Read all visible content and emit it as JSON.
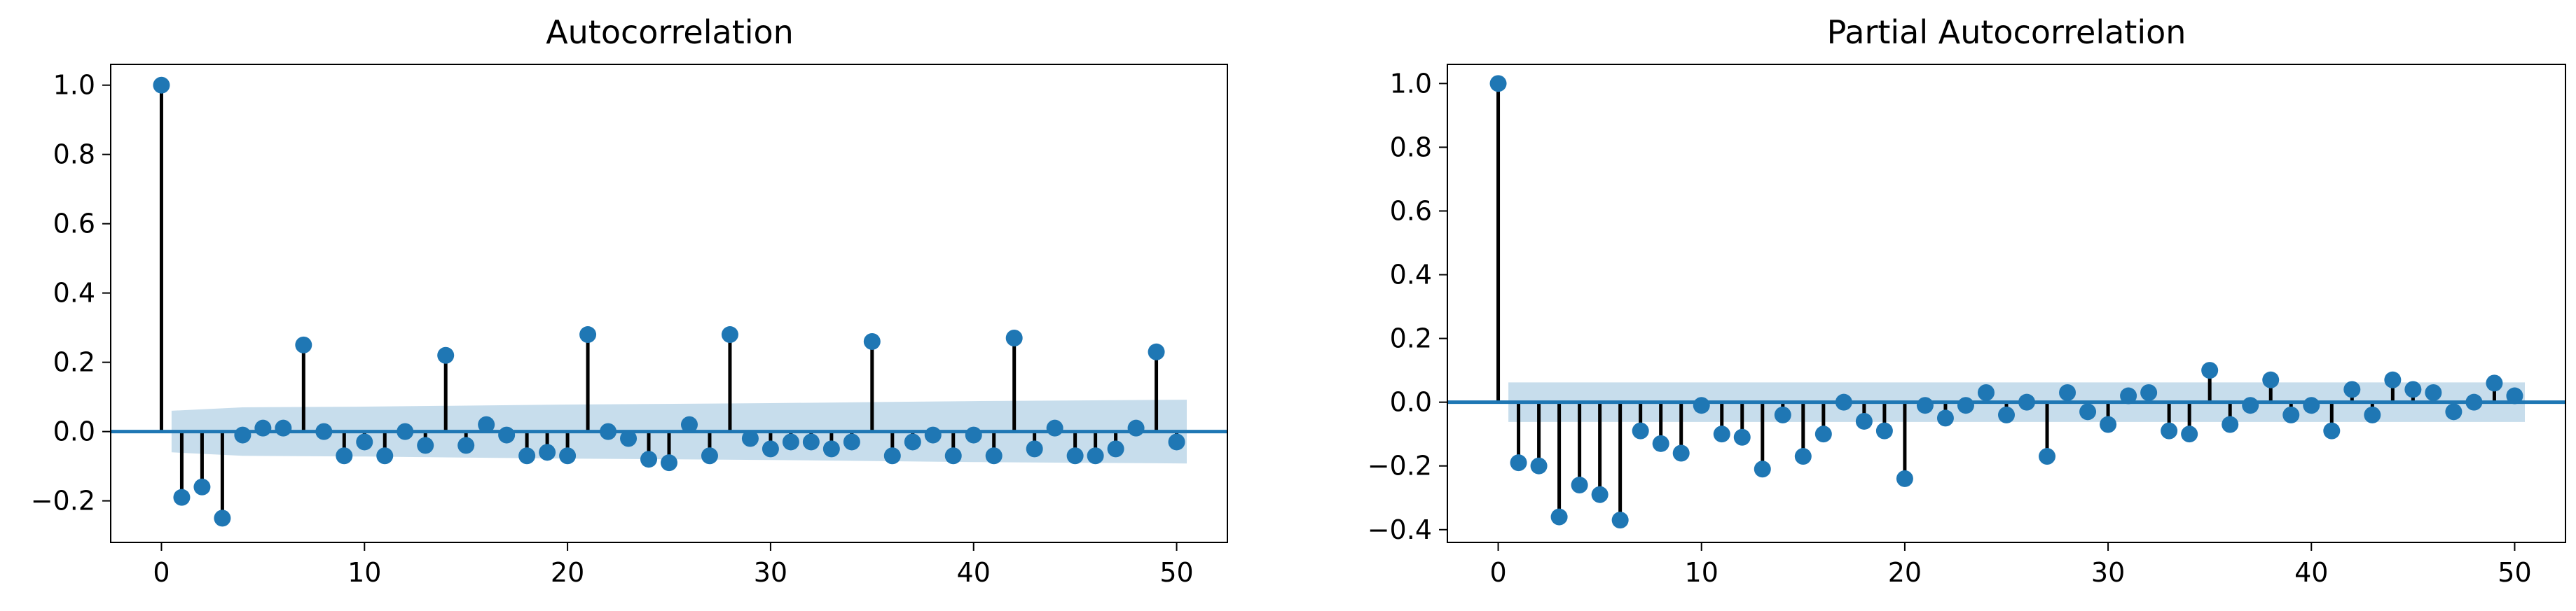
{
  "colors": {
    "stem": "#000000",
    "marker": "#1f77b4",
    "zero_line": "#1f77b4",
    "confidence_band": "#1f77b4",
    "axes_frame": "#000000",
    "background": "#ffffff"
  },
  "chart_data": [
    {
      "type": "stem",
      "title": "Autocorrelation",
      "xlabel": "",
      "ylabel": "",
      "xlim": [
        -2.5,
        52.5
      ],
      "ylim": [
        -0.32,
        1.06
      ],
      "xticks": [
        0,
        10,
        20,
        30,
        40,
        50
      ],
      "xtick_labels": [
        "0",
        "10",
        "20",
        "30",
        "40",
        "50"
      ],
      "yticks": [
        -0.2,
        0.0,
        0.2,
        0.4,
        0.6,
        0.8,
        1.0
      ],
      "ytick_labels": [
        "−0.2",
        "0.0",
        "0.2",
        "0.4",
        "0.6",
        "0.8",
        "1.0"
      ],
      "grid": false,
      "lags": [
        0,
        1,
        2,
        3,
        4,
        5,
        6,
        7,
        8,
        9,
        10,
        11,
        12,
        13,
        14,
        15,
        16,
        17,
        18,
        19,
        20,
        21,
        22,
        23,
        24,
        25,
        26,
        27,
        28,
        29,
        30,
        31,
        32,
        33,
        34,
        35,
        36,
        37,
        38,
        39,
        40,
        41,
        42,
        43,
        44,
        45,
        46,
        47,
        48,
        49,
        50
      ],
      "values": [
        1.0,
        -0.19,
        -0.16,
        -0.25,
        -0.01,
        0.01,
        0.01,
        0.25,
        0.0,
        -0.07,
        -0.03,
        -0.07,
        0.0,
        -0.04,
        0.22,
        -0.04,
        0.02,
        -0.01,
        -0.07,
        -0.06,
        -0.07,
        0.28,
        0.0,
        -0.02,
        -0.08,
        -0.09,
        0.02,
        -0.07,
        0.28,
        -0.02,
        -0.05,
        -0.03,
        -0.03,
        -0.05,
        -0.03,
        0.26,
        -0.07,
        -0.03,
        -0.01,
        -0.07,
        -0.01,
        -0.07,
        0.27,
        -0.05,
        0.01,
        -0.07,
        -0.07,
        -0.05,
        0.01,
        0.23,
        -0.03
      ],
      "confidence_band": {
        "lags": [
          0.5,
          4,
          10,
          20,
          30,
          40,
          50.5
        ],
        "upper": [
          0.06,
          0.07,
          0.072,
          0.078,
          0.082,
          0.088,
          0.092
        ],
        "lower": [
          -0.06,
          -0.07,
          -0.072,
          -0.078,
          -0.082,
          -0.088,
          -0.092
        ]
      }
    },
    {
      "type": "stem",
      "title": "Partial Autocorrelation",
      "xlabel": "",
      "ylabel": "",
      "xlim": [
        -2.5,
        52.5
      ],
      "ylim": [
        -0.44,
        1.06
      ],
      "xticks": [
        0,
        10,
        20,
        30,
        40,
        50
      ],
      "xtick_labels": [
        "0",
        "10",
        "20",
        "30",
        "40",
        "50"
      ],
      "yticks": [
        -0.4,
        -0.2,
        0.0,
        0.2,
        0.4,
        0.6,
        0.8,
        1.0
      ],
      "ytick_labels": [
        "−0.4",
        "−0.2",
        "0.0",
        "0.2",
        "0.4",
        "0.6",
        "0.8",
        "1.0"
      ],
      "grid": false,
      "lags": [
        0,
        1,
        2,
        3,
        4,
        5,
        6,
        7,
        8,
        9,
        10,
        11,
        12,
        13,
        14,
        15,
        16,
        17,
        18,
        19,
        20,
        21,
        22,
        23,
        24,
        25,
        26,
        27,
        28,
        29,
        30,
        31,
        32,
        33,
        34,
        35,
        36,
        37,
        38,
        39,
        40,
        41,
        42,
        43,
        44,
        45,
        46,
        47,
        48,
        49,
        50
      ],
      "values": [
        1.0,
        -0.19,
        -0.2,
        -0.36,
        -0.26,
        -0.29,
        -0.37,
        -0.09,
        -0.13,
        -0.16,
        -0.01,
        -0.1,
        -0.11,
        -0.21,
        -0.04,
        -0.17,
        -0.1,
        0.0,
        -0.06,
        -0.09,
        -0.24,
        -0.01,
        -0.05,
        -0.01,
        0.03,
        -0.04,
        0.0,
        -0.17,
        0.03,
        -0.03,
        -0.07,
        0.02,
        0.03,
        -0.09,
        -0.1,
        0.1,
        -0.07,
        -0.01,
        0.07,
        -0.04,
        -0.01,
        -0.09,
        0.04,
        -0.04,
        0.07,
        0.04,
        0.03,
        -0.03,
        0.0,
        0.06,
        0.02
      ],
      "confidence_band": {
        "lags": [
          0.5,
          50.5
        ],
        "upper": [
          0.062,
          0.062
        ],
        "lower": [
          -0.062,
          -0.062
        ]
      }
    }
  ]
}
